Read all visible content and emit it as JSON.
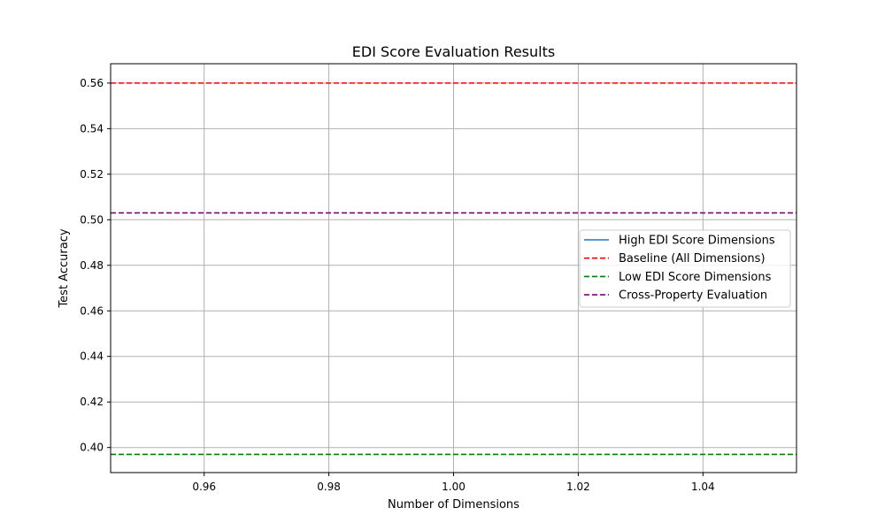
{
  "chart_data": {
    "type": "line",
    "title": "EDI Score Evaluation Results",
    "xlabel": "Number of Dimensions",
    "ylabel": "Test Accuracy",
    "xlim": [
      0.945,
      1.055
    ],
    "ylim": [
      0.389,
      0.5685
    ],
    "xticks": [
      0.96,
      0.98,
      1.0,
      1.02,
      1.04
    ],
    "xtick_labels": [
      "0.96",
      "0.98",
      "1.00",
      "1.02",
      "1.04"
    ],
    "yticks": [
      0.4,
      0.42,
      0.44,
      0.46,
      0.48,
      0.5,
      0.52,
      0.54,
      0.56
    ],
    "ytick_labels": [
      "0.40",
      "0.42",
      "0.44",
      "0.46",
      "0.48",
      "0.50",
      "0.52",
      "0.54",
      "0.56"
    ],
    "grid": true,
    "legend_position": "center-right",
    "series": [
      {
        "name": "High EDI Score Dimensions",
        "color": "#1f77b4",
        "style": "solid",
        "x": [
          1.0
        ],
        "y": [
          0.503
        ]
      },
      {
        "name": "Baseline (All Dimensions)",
        "color": "#ff0000",
        "style": "dashed",
        "y_const": 0.56
      },
      {
        "name": "Low EDI Score Dimensions",
        "color": "#008000",
        "style": "dashed",
        "y_const": 0.397
      },
      {
        "name": "Cross-Property Evaluation",
        "color": "#800080",
        "style": "dashed",
        "y_const": 0.503
      }
    ]
  }
}
